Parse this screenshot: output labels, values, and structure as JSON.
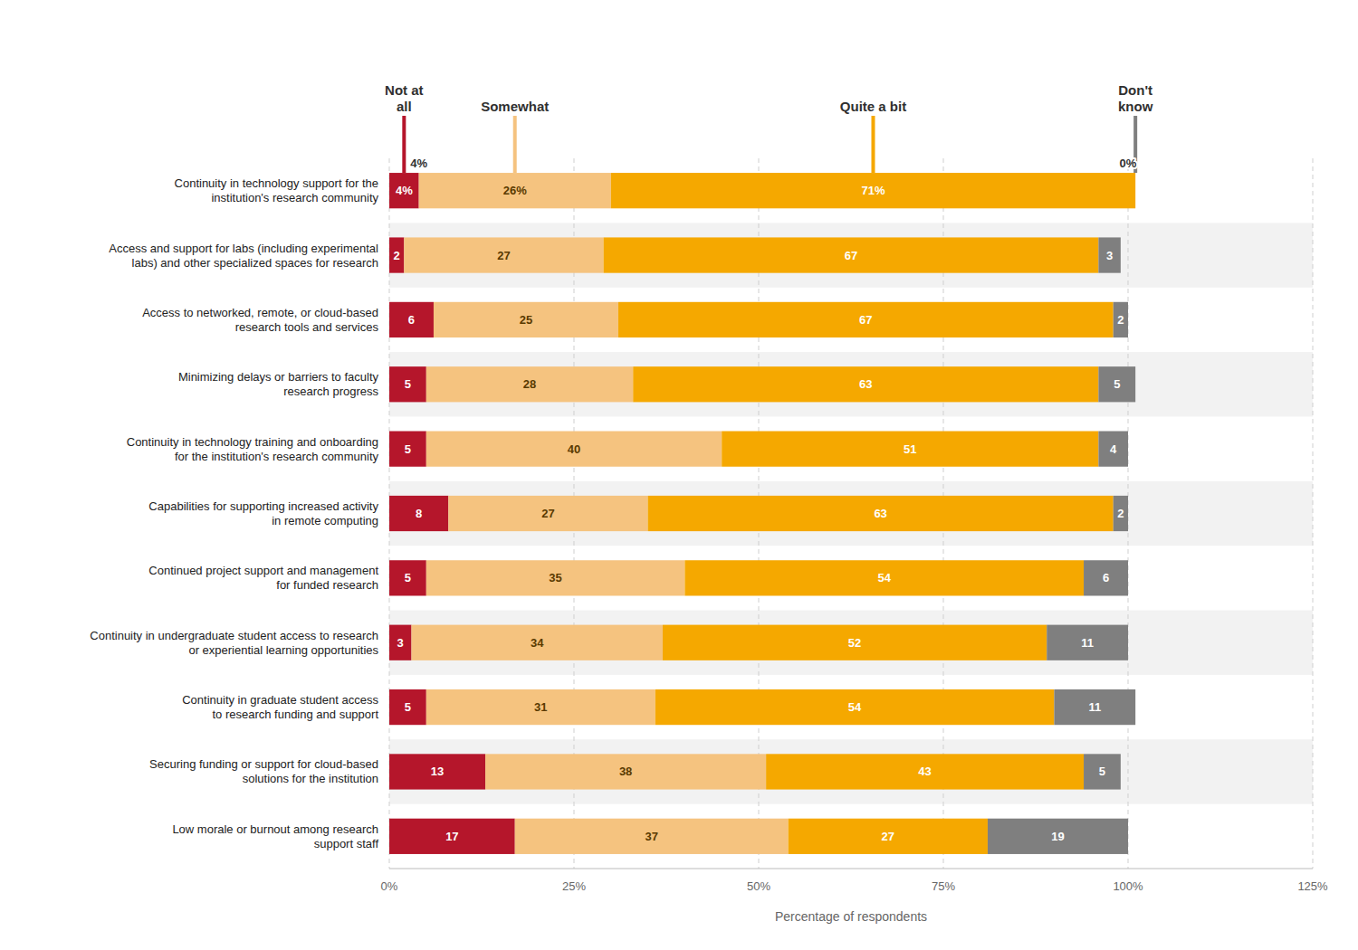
{
  "chart_data": {
    "type": "bar",
    "orientation": "horizontal",
    "stacked": true,
    "data_labels": true,
    "grid": true,
    "xlabel": "Percentage of respondents",
    "xlim": [
      0,
      125
    ],
    "xticks": [
      {
        "value": 0,
        "label": "0%"
      },
      {
        "value": 25,
        "label": "25%"
      },
      {
        "value": 50,
        "label": "50%"
      },
      {
        "value": 75,
        "label": "75%"
      },
      {
        "value": 100,
        "label": "100%"
      },
      {
        "value": 125,
        "label": "125%"
      }
    ],
    "categories": [
      "Continuity in technology support for the\ninstitution's research community",
      "Access and support for labs (including experimental\nlabs) and other specialized spaces for research",
      "Access to networked, remote, or cloud-based\nresearch tools and services",
      "Minimizing delays or barriers to faculty\nresearch progress",
      "Continuity in technology training and onboarding\nfor the institution's research community",
      "Capabilities for supporting increased activity\nin remote computing",
      "Continued project support and management\nfor funded research",
      "Continuity in undergraduate student access to research\nor experiential learning opportunities",
      "Continuity in graduate student access\nto research funding and support",
      "Securing funding or support for cloud-based\nsolutions for the institution",
      "Low morale or burnout among research\nsupport staff"
    ],
    "series": [
      {
        "name": "Not at\nall",
        "color": "#b5162b",
        "values": [
          4,
          2,
          6,
          5,
          5,
          8,
          5,
          3,
          5,
          13,
          17
        ],
        "value_labels": [
          "4%",
          "2",
          "6",
          "5",
          "5",
          "8",
          "5",
          "3",
          "5",
          "13",
          "17"
        ]
      },
      {
        "name": "Somewhat",
        "color": "#f5c37f",
        "values": [
          26,
          27,
          25,
          28,
          40,
          27,
          35,
          34,
          31,
          38,
          37
        ],
        "value_labels": [
          "26%",
          "27",
          "25",
          "28",
          "40",
          "27",
          "35",
          "34",
          "31",
          "38",
          "37"
        ]
      },
      {
        "name": "Quite a bit",
        "color": "#f5a800",
        "values": [
          71,
          67,
          67,
          63,
          51,
          63,
          54,
          52,
          54,
          43,
          27
        ],
        "value_labels": [
          "71%",
          "67",
          "67",
          "63",
          "51",
          "63",
          "54",
          "52",
          "54",
          "43",
          "27"
        ]
      },
      {
        "name": "Don't\nknow",
        "color": "#7f7f7f",
        "values": [
          0,
          3,
          2,
          5,
          4,
          2,
          6,
          11,
          11,
          5,
          19
        ],
        "value_labels": [
          null,
          "3",
          "2",
          "5",
          "4",
          "2",
          "6",
          "11",
          "11",
          "5",
          "19"
        ]
      }
    ],
    "annotations": [
      {
        "text": "4%",
        "x": 4
      },
      {
        "text": "0%",
        "x": 100
      }
    ]
  }
}
